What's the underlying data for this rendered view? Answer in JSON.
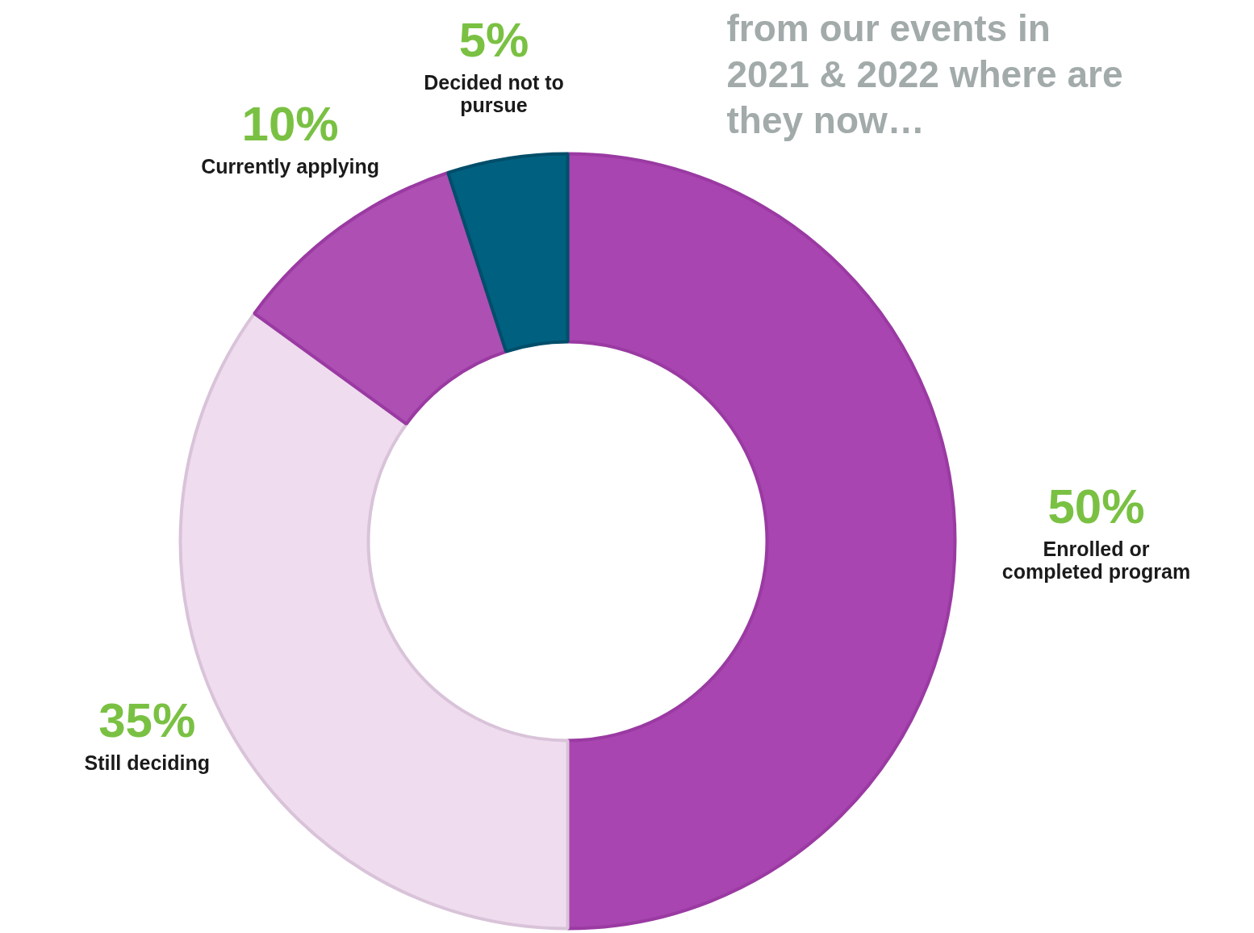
{
  "chart_data": {
    "type": "donut",
    "title": "from our events in 2021 & 2022 where are they now…",
    "categories": [
      "Enrolled or completed program",
      "Still deciding",
      "Currently applying",
      "Decided not to pursue"
    ],
    "values": [
      50,
      35,
      10,
      5
    ],
    "value_labels": [
      "50%",
      "35%",
      "10%",
      "5%"
    ],
    "colors": [
      "#a845b0",
      "#efdcef",
      "#ad4fb3",
      "#006080"
    ]
  }
}
